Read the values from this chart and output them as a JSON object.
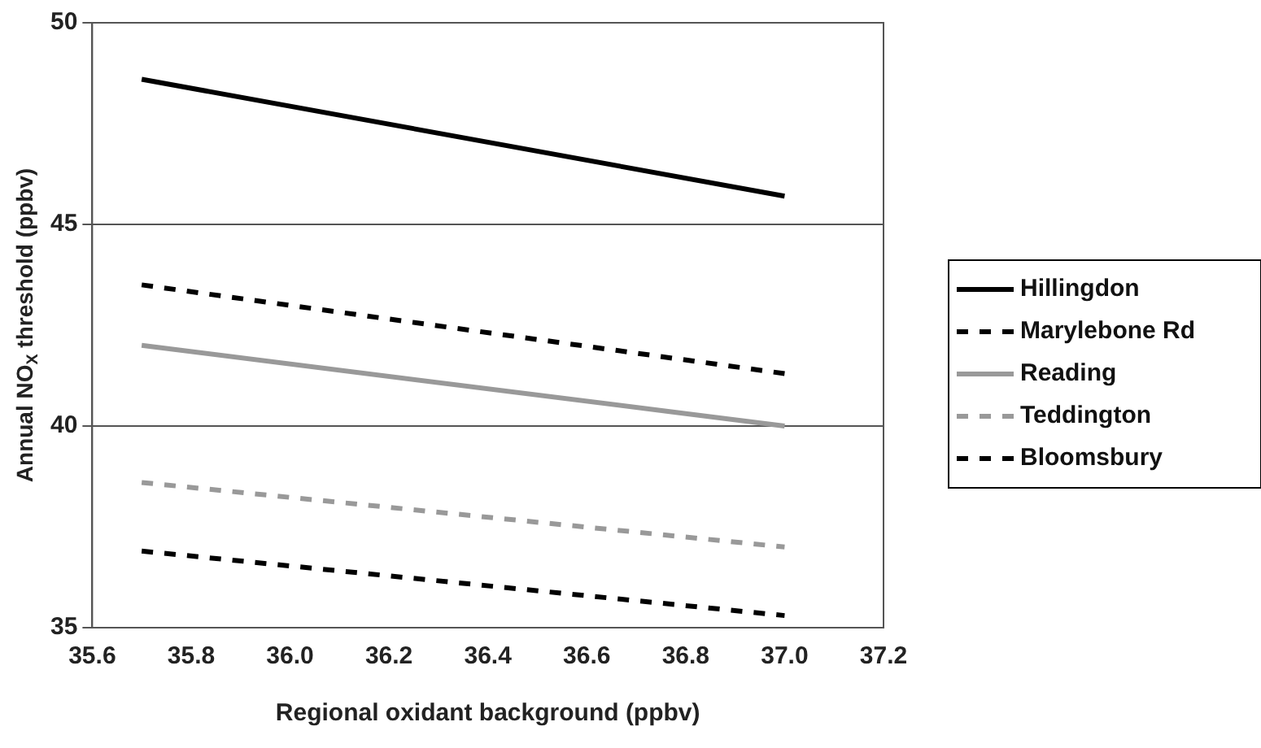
{
  "chart_data": {
    "type": "line",
    "xlabel": "Regional oxidant background (ppbv)",
    "ylabel": "Annual NO$_{X}$ threshold (ppbv)",
    "x": [
      35.7,
      37.0
    ],
    "series": [
      {
        "name": "Hillingdon",
        "color": "#000000",
        "line_style": "solid",
        "values": [
          48.6,
          45.7
        ]
      },
      {
        "name": "Marylebone Rd",
        "color": "#000000",
        "line_style": "dashed",
        "values": [
          43.5,
          41.3
        ]
      },
      {
        "name": "Reading",
        "color": "#999999",
        "line_style": "solid",
        "values": [
          42.0,
          40.0
        ]
      },
      {
        "name": "Teddington",
        "color": "#999999",
        "line_style": "dashed",
        "values": [
          38.6,
          37.0
        ]
      },
      {
        "name": "Bloomsbury",
        "color": "#000000",
        "line_style": "dashed",
        "values": [
          36.9,
          35.3
        ]
      }
    ],
    "xlim": [
      35.6,
      37.2
    ],
    "xticks": [
      35.6,
      35.8,
      {
        "value": 36,
        "label": "36.0"
      },
      36.2,
      36.4,
      36.6,
      36.8,
      {
        "value": 37,
        "label": "37.0"
      },
      37.2
    ],
    "ylim": [
      35,
      50
    ],
    "yticks": [
      35,
      40,
      45,
      50
    ],
    "grid": "y",
    "legend": "right",
    "marker": "none"
  }
}
